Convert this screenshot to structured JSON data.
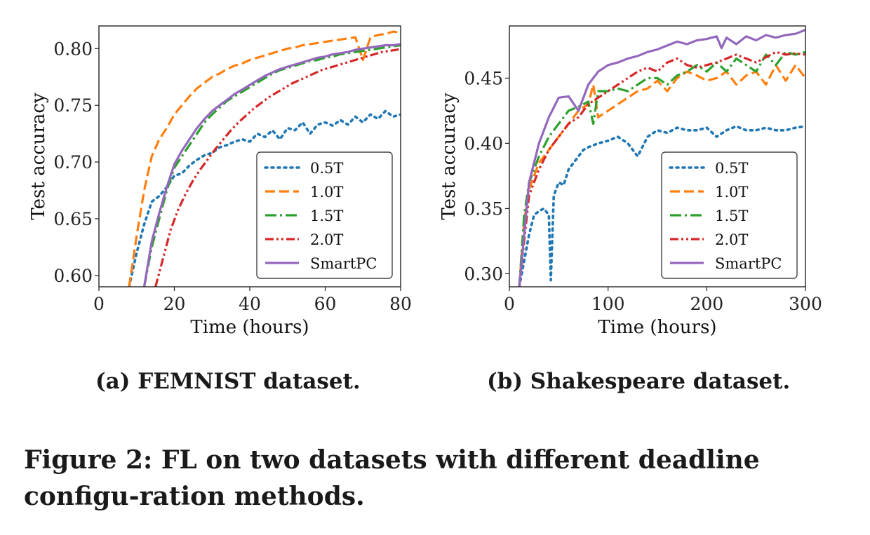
{
  "caption": "Figure 2: FL on two datasets with different deadline configu-ration methods.",
  "colors": {
    "0.5T": "#1f77b4",
    "1.0T": "#ff7f0e",
    "1.5T": "#2ca02c",
    "2.0T": "#d62728",
    "SmartPC": "#9467bd"
  },
  "chart_data": [
    {
      "type": "line",
      "caption": "(a) FEMNIST dataset.",
      "xlabel": "Time (hours)",
      "ylabel": "Test accuracy",
      "xlim": [
        0,
        80
      ],
      "ylim": [
        0.59,
        0.82
      ],
      "xticks": [
        0,
        20,
        40,
        60,
        80
      ],
      "yticks": [
        0.6,
        0.65,
        0.7,
        0.75,
        0.8
      ],
      "ytick_labels": [
        "0.60",
        "0.65",
        "0.70",
        "0.75",
        "0.80"
      ],
      "grid": false,
      "legend_position": "lower-right",
      "series": [
        {
          "name": "0.5T",
          "style": "dotted",
          "x": [
            8,
            10,
            12,
            14,
            16,
            18,
            20,
            22,
            24,
            26,
            28,
            30,
            32,
            34,
            36,
            38,
            40,
            42,
            44,
            46,
            48,
            50,
            52,
            54,
            56,
            58,
            60,
            62,
            64,
            66,
            68,
            70,
            72,
            74,
            76,
            78,
            80
          ],
          "y": [
            0.59,
            0.62,
            0.645,
            0.665,
            0.67,
            0.678,
            0.688,
            0.69,
            0.697,
            0.702,
            0.706,
            0.708,
            0.713,
            0.715,
            0.718,
            0.72,
            0.718,
            0.725,
            0.722,
            0.728,
            0.72,
            0.73,
            0.728,
            0.735,
            0.725,
            0.733,
            0.735,
            0.732,
            0.737,
            0.733,
            0.74,
            0.735,
            0.742,
            0.738,
            0.745,
            0.74,
            0.742
          ]
        },
        {
          "name": "1.0T",
          "style": "dashed",
          "x": [
            8,
            10,
            12,
            14,
            16,
            18,
            20,
            22,
            24,
            26,
            28,
            30,
            32,
            34,
            36,
            38,
            40,
            42,
            44,
            46,
            48,
            50,
            52,
            54,
            56,
            58,
            60,
            62,
            64,
            66,
            68,
            70,
            72,
            74,
            76,
            78,
            80
          ],
          "y": [
            0.59,
            0.635,
            0.675,
            0.705,
            0.72,
            0.73,
            0.742,
            0.75,
            0.758,
            0.765,
            0.77,
            0.775,
            0.778,
            0.782,
            0.785,
            0.787,
            0.79,
            0.792,
            0.794,
            0.796,
            0.798,
            0.8,
            0.801,
            0.803,
            0.804,
            0.805,
            0.806,
            0.807,
            0.808,
            0.809,
            0.81,
            0.79,
            0.81,
            0.812,
            0.813,
            0.815,
            0.814
          ]
        },
        {
          "name": "1.5T",
          "style": "dashdot",
          "x": [
            12,
            14,
            16,
            18,
            20,
            22,
            24,
            26,
            28,
            30,
            32,
            34,
            36,
            38,
            40,
            42,
            44,
            46,
            48,
            50,
            52,
            54,
            56,
            58,
            60,
            62,
            64,
            66,
            68,
            70,
            72,
            74,
            76,
            78,
            80
          ],
          "y": [
            0.59,
            0.625,
            0.65,
            0.675,
            0.695,
            0.705,
            0.715,
            0.725,
            0.735,
            0.742,
            0.748,
            0.754,
            0.758,
            0.762,
            0.766,
            0.77,
            0.774,
            0.778,
            0.781,
            0.783,
            0.785,
            0.787,
            0.789,
            0.79,
            0.792,
            0.793,
            0.795,
            0.796,
            0.797,
            0.798,
            0.799,
            0.8,
            0.801,
            0.802,
            0.803
          ]
        },
        {
          "name": "2.0T",
          "style": "dashdotdot",
          "x": [
            15,
            17,
            19,
            21,
            23,
            25,
            27,
            29,
            31,
            33,
            35,
            37,
            39,
            41,
            43,
            45,
            47,
            49,
            51,
            53,
            55,
            57,
            59,
            61,
            63,
            65,
            67,
            69,
            71,
            73,
            75,
            77,
            79,
            80
          ],
          "y": [
            0.59,
            0.615,
            0.64,
            0.658,
            0.672,
            0.684,
            0.694,
            0.703,
            0.712,
            0.72,
            0.728,
            0.735,
            0.741,
            0.747,
            0.752,
            0.757,
            0.761,
            0.765,
            0.769,
            0.772,
            0.775,
            0.778,
            0.781,
            0.783,
            0.785,
            0.787,
            0.789,
            0.791,
            0.793,
            0.795,
            0.797,
            0.798,
            0.799,
            0.8
          ]
        },
        {
          "name": "SmartPC",
          "style": "solid",
          "x": [
            12,
            14,
            16,
            18,
            20,
            22,
            24,
            26,
            28,
            30,
            32,
            34,
            36,
            38,
            40,
            42,
            44,
            46,
            48,
            50,
            52,
            54,
            56,
            58,
            60,
            62,
            64,
            66,
            68,
            70,
            72,
            74,
            76,
            78,
            80
          ],
          "y": [
            0.59,
            0.63,
            0.655,
            0.678,
            0.698,
            0.71,
            0.72,
            0.73,
            0.738,
            0.745,
            0.75,
            0.755,
            0.76,
            0.764,
            0.768,
            0.772,
            0.776,
            0.779,
            0.782,
            0.784,
            0.786,
            0.788,
            0.79,
            0.792,
            0.793,
            0.795,
            0.796,
            0.797,
            0.799,
            0.8,
            0.801,
            0.802,
            0.803,
            0.803,
            0.804
          ]
        }
      ]
    },
    {
      "type": "line",
      "caption": "(b) Shakespeare dataset.",
      "xlabel": "Time (hours)",
      "ylabel": "Test accuracy",
      "xlim": [
        0,
        300
      ],
      "ylim": [
        0.29,
        0.49
      ],
      "xticks": [
        0,
        100,
        200,
        300
      ],
      "yticks": [
        0.3,
        0.35,
        0.4,
        0.45
      ],
      "ytick_labels": [
        "0.30",
        "0.35",
        "0.40",
        "0.45"
      ],
      "grid": false,
      "legend_position": "lower-right",
      "series": [
        {
          "name": "0.5T",
          "style": "dotted",
          "x": [
            10,
            15,
            20,
            25,
            30,
            35,
            40,
            42,
            45,
            50,
            55,
            60,
            65,
            70,
            75,
            80,
            90,
            100,
            110,
            120,
            125,
            130,
            140,
            150,
            160,
            170,
            180,
            190,
            200,
            210,
            220,
            230,
            240,
            250,
            260,
            270,
            280,
            290,
            300
          ],
          "y": [
            0.29,
            0.31,
            0.33,
            0.345,
            0.348,
            0.35,
            0.345,
            0.295,
            0.36,
            0.37,
            0.368,
            0.38,
            0.385,
            0.39,
            0.395,
            0.397,
            0.4,
            0.402,
            0.405,
            0.4,
            0.395,
            0.39,
            0.405,
            0.41,
            0.408,
            0.412,
            0.41,
            0.41,
            0.412,
            0.405,
            0.41,
            0.413,
            0.41,
            0.41,
            0.412,
            0.41,
            0.41,
            0.412,
            0.413
          ]
        },
        {
          "name": "1.0T",
          "style": "dashed",
          "x": [
            10,
            15,
            20,
            30,
            40,
            50,
            60,
            70,
            80,
            85,
            90,
            100,
            110,
            120,
            130,
            140,
            150,
            160,
            170,
            180,
            190,
            200,
            210,
            220,
            230,
            240,
            250,
            260,
            270,
            280,
            290,
            300
          ],
          "y": [
            0.29,
            0.34,
            0.365,
            0.385,
            0.395,
            0.405,
            0.415,
            0.425,
            0.43,
            0.445,
            0.42,
            0.425,
            0.43,
            0.435,
            0.44,
            0.442,
            0.448,
            0.44,
            0.45,
            0.455,
            0.452,
            0.448,
            0.45,
            0.455,
            0.445,
            0.452,
            0.455,
            0.445,
            0.46,
            0.448,
            0.46,
            0.45
          ]
        },
        {
          "name": "1.5T",
          "style": "dashdot",
          "x": [
            10,
            15,
            20,
            30,
            40,
            50,
            60,
            70,
            80,
            85,
            90,
            100,
            110,
            120,
            130,
            140,
            150,
            160,
            170,
            180,
            190,
            200,
            210,
            220,
            230,
            240,
            250,
            260,
            270,
            280,
            290,
            300
          ],
          "y": [
            0.29,
            0.345,
            0.37,
            0.39,
            0.405,
            0.415,
            0.425,
            0.428,
            0.432,
            0.415,
            0.44,
            0.44,
            0.442,
            0.44,
            0.445,
            0.45,
            0.45,
            0.445,
            0.452,
            0.455,
            0.46,
            0.455,
            0.462,
            0.455,
            0.465,
            0.46,
            0.455,
            0.468,
            0.46,
            0.47,
            0.468,
            0.47
          ]
        },
        {
          "name": "2.0T",
          "style": "dashdotdot",
          "x": [
            10,
            20,
            30,
            40,
            50,
            60,
            70,
            80,
            90,
            100,
            110,
            120,
            130,
            140,
            150,
            160,
            170,
            180,
            190,
            200,
            210,
            220,
            230,
            240,
            250,
            260,
            270,
            280,
            290,
            300
          ],
          "y": [
            0.29,
            0.36,
            0.38,
            0.395,
            0.405,
            0.415,
            0.42,
            0.43,
            0.435,
            0.44,
            0.445,
            0.45,
            0.455,
            0.458,
            0.455,
            0.462,
            0.465,
            0.46,
            0.458,
            0.46,
            0.462,
            0.465,
            0.468,
            0.465,
            0.462,
            0.466,
            0.47,
            0.468,
            0.469,
            0.468
          ]
        },
        {
          "name": "SmartPC",
          "style": "solid",
          "x": [
            10,
            20,
            30,
            40,
            50,
            60,
            70,
            80,
            90,
            100,
            110,
            120,
            130,
            140,
            150,
            160,
            170,
            180,
            190,
            200,
            210,
            215,
            220,
            230,
            240,
            250,
            260,
            270,
            280,
            290,
            300
          ],
          "y": [
            0.29,
            0.37,
            0.4,
            0.42,
            0.435,
            0.436,
            0.425,
            0.445,
            0.455,
            0.46,
            0.462,
            0.465,
            0.467,
            0.47,
            0.472,
            0.475,
            0.478,
            0.476,
            0.479,
            0.48,
            0.482,
            0.473,
            0.481,
            0.476,
            0.482,
            0.479,
            0.483,
            0.481,
            0.483,
            0.484,
            0.487
          ]
        }
      ]
    }
  ]
}
